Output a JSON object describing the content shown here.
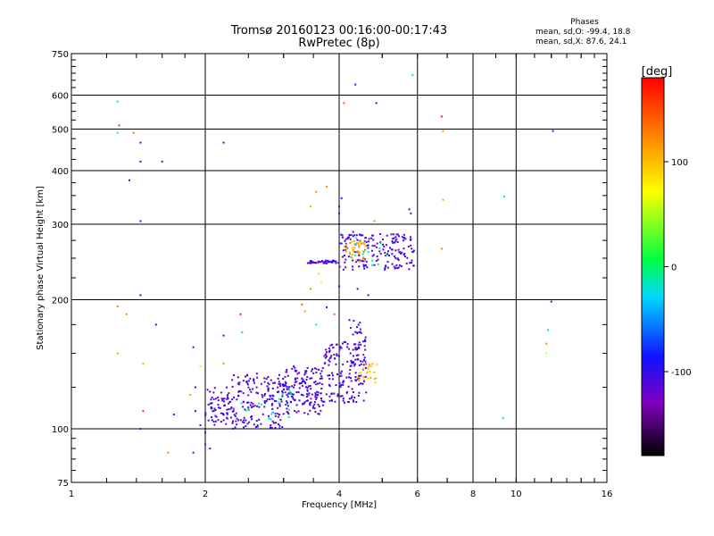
{
  "title": {
    "line1": "Tromsø 20160123 00:16:00-00:17:43",
    "line2": "RwPretec (8p)"
  },
  "phases": {
    "header": "Phases",
    "o_line": "mean, sd,O: -99.4, 18.8",
    "x_line": "mean, sd,X:  87.6, 24.1"
  },
  "chart_data": {
    "type": "scatter",
    "xlabel": "Frequency [MHz]",
    "ylabel": "Stationary phase Virtual Height [km]",
    "xscale": "log",
    "yscale": "log",
    "xlim": [
      1,
      16
    ],
    "ylim": [
      75,
      750
    ],
    "xticks": [
      {
        "value": 1,
        "label": "1"
      },
      {
        "value": 2,
        "label": "2"
      },
      {
        "value": 4,
        "label": "4"
      },
      {
        "value": 6,
        "label": "6"
      },
      {
        "value": 8,
        "label": "8"
      },
      {
        "value": 10,
        "label": "10"
      },
      {
        "value": 16,
        "label": "16"
      }
    ],
    "yticks": [
      {
        "value": 75,
        "label": "75"
      },
      {
        "value": 100,
        "label": "100"
      },
      {
        "value": 200,
        "label": "200"
      },
      {
        "value": 300,
        "label": "300"
      },
      {
        "value": 400,
        "label": "400"
      },
      {
        "value": 500,
        "label": "500"
      },
      {
        "value": 600,
        "label": "600"
      },
      {
        "value": 750,
        "label": "750"
      }
    ],
    "grid": true,
    "colorbar": {
      "label": "[deg]",
      "range": [
        -180,
        180
      ],
      "ticks": [
        {
          "value": 100,
          "label": "100"
        },
        {
          "value": 0,
          "label": "0"
        },
        {
          "value": -100,
          "label": "-100"
        }
      ]
    },
    "points": [
      [
        1.27,
        580,
        -10
      ],
      [
        1.28,
        510,
        150
      ],
      [
        1.27,
        490,
        -10
      ],
      [
        1.38,
        490,
        130
      ],
      [
        1.43,
        465,
        -110
      ],
      [
        1.43,
        420,
        -110
      ],
      [
        1.6,
        420,
        -110
      ],
      [
        1.35,
        380,
        -110
      ],
      [
        1.43,
        305,
        -110
      ],
      [
        2.2,
        465,
        -110
      ],
      [
        1.43,
        205,
        -110
      ],
      [
        1.27,
        193,
        130
      ],
      [
        1.33,
        185,
        120
      ],
      [
        1.55,
        175,
        -110
      ],
      [
        1.27,
        150,
        110
      ],
      [
        1.45,
        142,
        110
      ],
      [
        1.45,
        110,
        160
      ],
      [
        1.43,
        100,
        -110
      ],
      [
        1.7,
        108,
        -110
      ],
      [
        1.88,
        155,
        -110
      ],
      [
        1.95,
        140,
        60
      ],
      [
        1.9,
        125,
        -110
      ],
      [
        1.85,
        120,
        110
      ],
      [
        1.9,
        110,
        -110
      ],
      [
        1.95,
        102,
        -110
      ],
      [
        2.0,
        100,
        -110
      ],
      [
        2.0,
        98,
        -110
      ],
      [
        1.88,
        88,
        -110
      ],
      [
        2.0,
        90,
        -50
      ],
      [
        2.05,
        90,
        -110
      ],
      [
        2.0,
        92,
        -110
      ],
      [
        2.2,
        165,
        -110
      ],
      [
        2.4,
        185,
        170
      ],
      [
        2.42,
        168,
        -30
      ],
      [
        2.2,
        142,
        120
      ],
      [
        2.3,
        130,
        -110
      ],
      [
        1.65,
        88,
        130
      ],
      [
        3.75,
        367,
        120
      ],
      [
        3.55,
        357,
        120
      ],
      [
        3.45,
        330,
        110
      ],
      [
        4.05,
        345,
        -110
      ],
      [
        4.0,
        330,
        -110
      ],
      [
        4.0,
        318,
        -110
      ],
      [
        4.0,
        300,
        -110
      ],
      [
        4.1,
        575,
        140
      ],
      [
        4.35,
        635,
        -110
      ],
      [
        4.85,
        575,
        -110
      ],
      [
        5.85,
        668,
        -10
      ],
      [
        6.8,
        535,
        170
      ],
      [
        6.85,
        495,
        120
      ],
      [
        6.85,
        342,
        110
      ],
      [
        6.8,
        263,
        130
      ],
      [
        9.4,
        348,
        -10
      ],
      [
        12.1,
        495,
        -110
      ],
      [
        9.35,
        106,
        -10
      ],
      [
        12.0,
        198,
        -110
      ],
      [
        11.8,
        170,
        -10
      ],
      [
        11.7,
        158,
        120
      ],
      [
        11.7,
        150,
        60
      ],
      [
        5.75,
        325,
        -110
      ],
      [
        5.8,
        318,
        -110
      ],
      [
        4.3,
        288,
        -110
      ],
      [
        3.6,
        230,
        50
      ],
      [
        3.65,
        220,
        60
      ],
      [
        3.45,
        212,
        120
      ],
      [
        3.3,
        195,
        140
      ],
      [
        3.35,
        188,
        110
      ],
      [
        3.55,
        175,
        -10
      ],
      [
        3.75,
        192,
        -110
      ],
      [
        4.4,
        212,
        -110
      ],
      [
        4.0,
        215,
        -110
      ],
      [
        4.8,
        305,
        130
      ],
      [
        4.65,
        205,
        -110
      ],
      [
        3.9,
        185,
        140
      ]
    ],
    "clusters": [
      {
        "fmin": 2.0,
        "fmax": 2.3,
        "hmin": 102,
        "hmax": 125,
        "n": 70,
        "color": -110
      },
      {
        "fmin": 2.3,
        "fmax": 3.0,
        "hmin": 100,
        "hmax": 135,
        "n": 170,
        "color": -110
      },
      {
        "fmin": 3.0,
        "fmax": 3.7,
        "hmin": 108,
        "hmax": 140,
        "n": 160,
        "color": -110
      },
      {
        "fmin": 3.7,
        "fmax": 4.6,
        "hmin": 115,
        "hmax": 160,
        "n": 150,
        "color": -110
      },
      {
        "fmin": 4.2,
        "fmax": 4.6,
        "hmin": 140,
        "hmax": 180,
        "n": 35,
        "color": -110
      },
      {
        "fmin": 4.4,
        "fmax": 4.9,
        "hmin": 128,
        "hmax": 142,
        "n": 26,
        "color": 100
      },
      {
        "fmin": 2.4,
        "fmax": 3.2,
        "hmin": 105,
        "hmax": 125,
        "n": 18,
        "color": -15
      },
      {
        "fmin": 3.4,
        "fmax": 4.0,
        "hmin": 243,
        "hmax": 247,
        "n": 45,
        "color": -110
      },
      {
        "fmin": 4.0,
        "fmax": 5.9,
        "hmin": 235,
        "hmax": 285,
        "n": 170,
        "color": -110
      },
      {
        "fmin": 4.1,
        "fmax": 4.6,
        "hmin": 245,
        "hmax": 275,
        "n": 40,
        "color": 110
      },
      {
        "fmin": 4.2,
        "fmax": 5.2,
        "hmin": 240,
        "hmax": 280,
        "n": 14,
        "color": -10
      }
    ]
  }
}
